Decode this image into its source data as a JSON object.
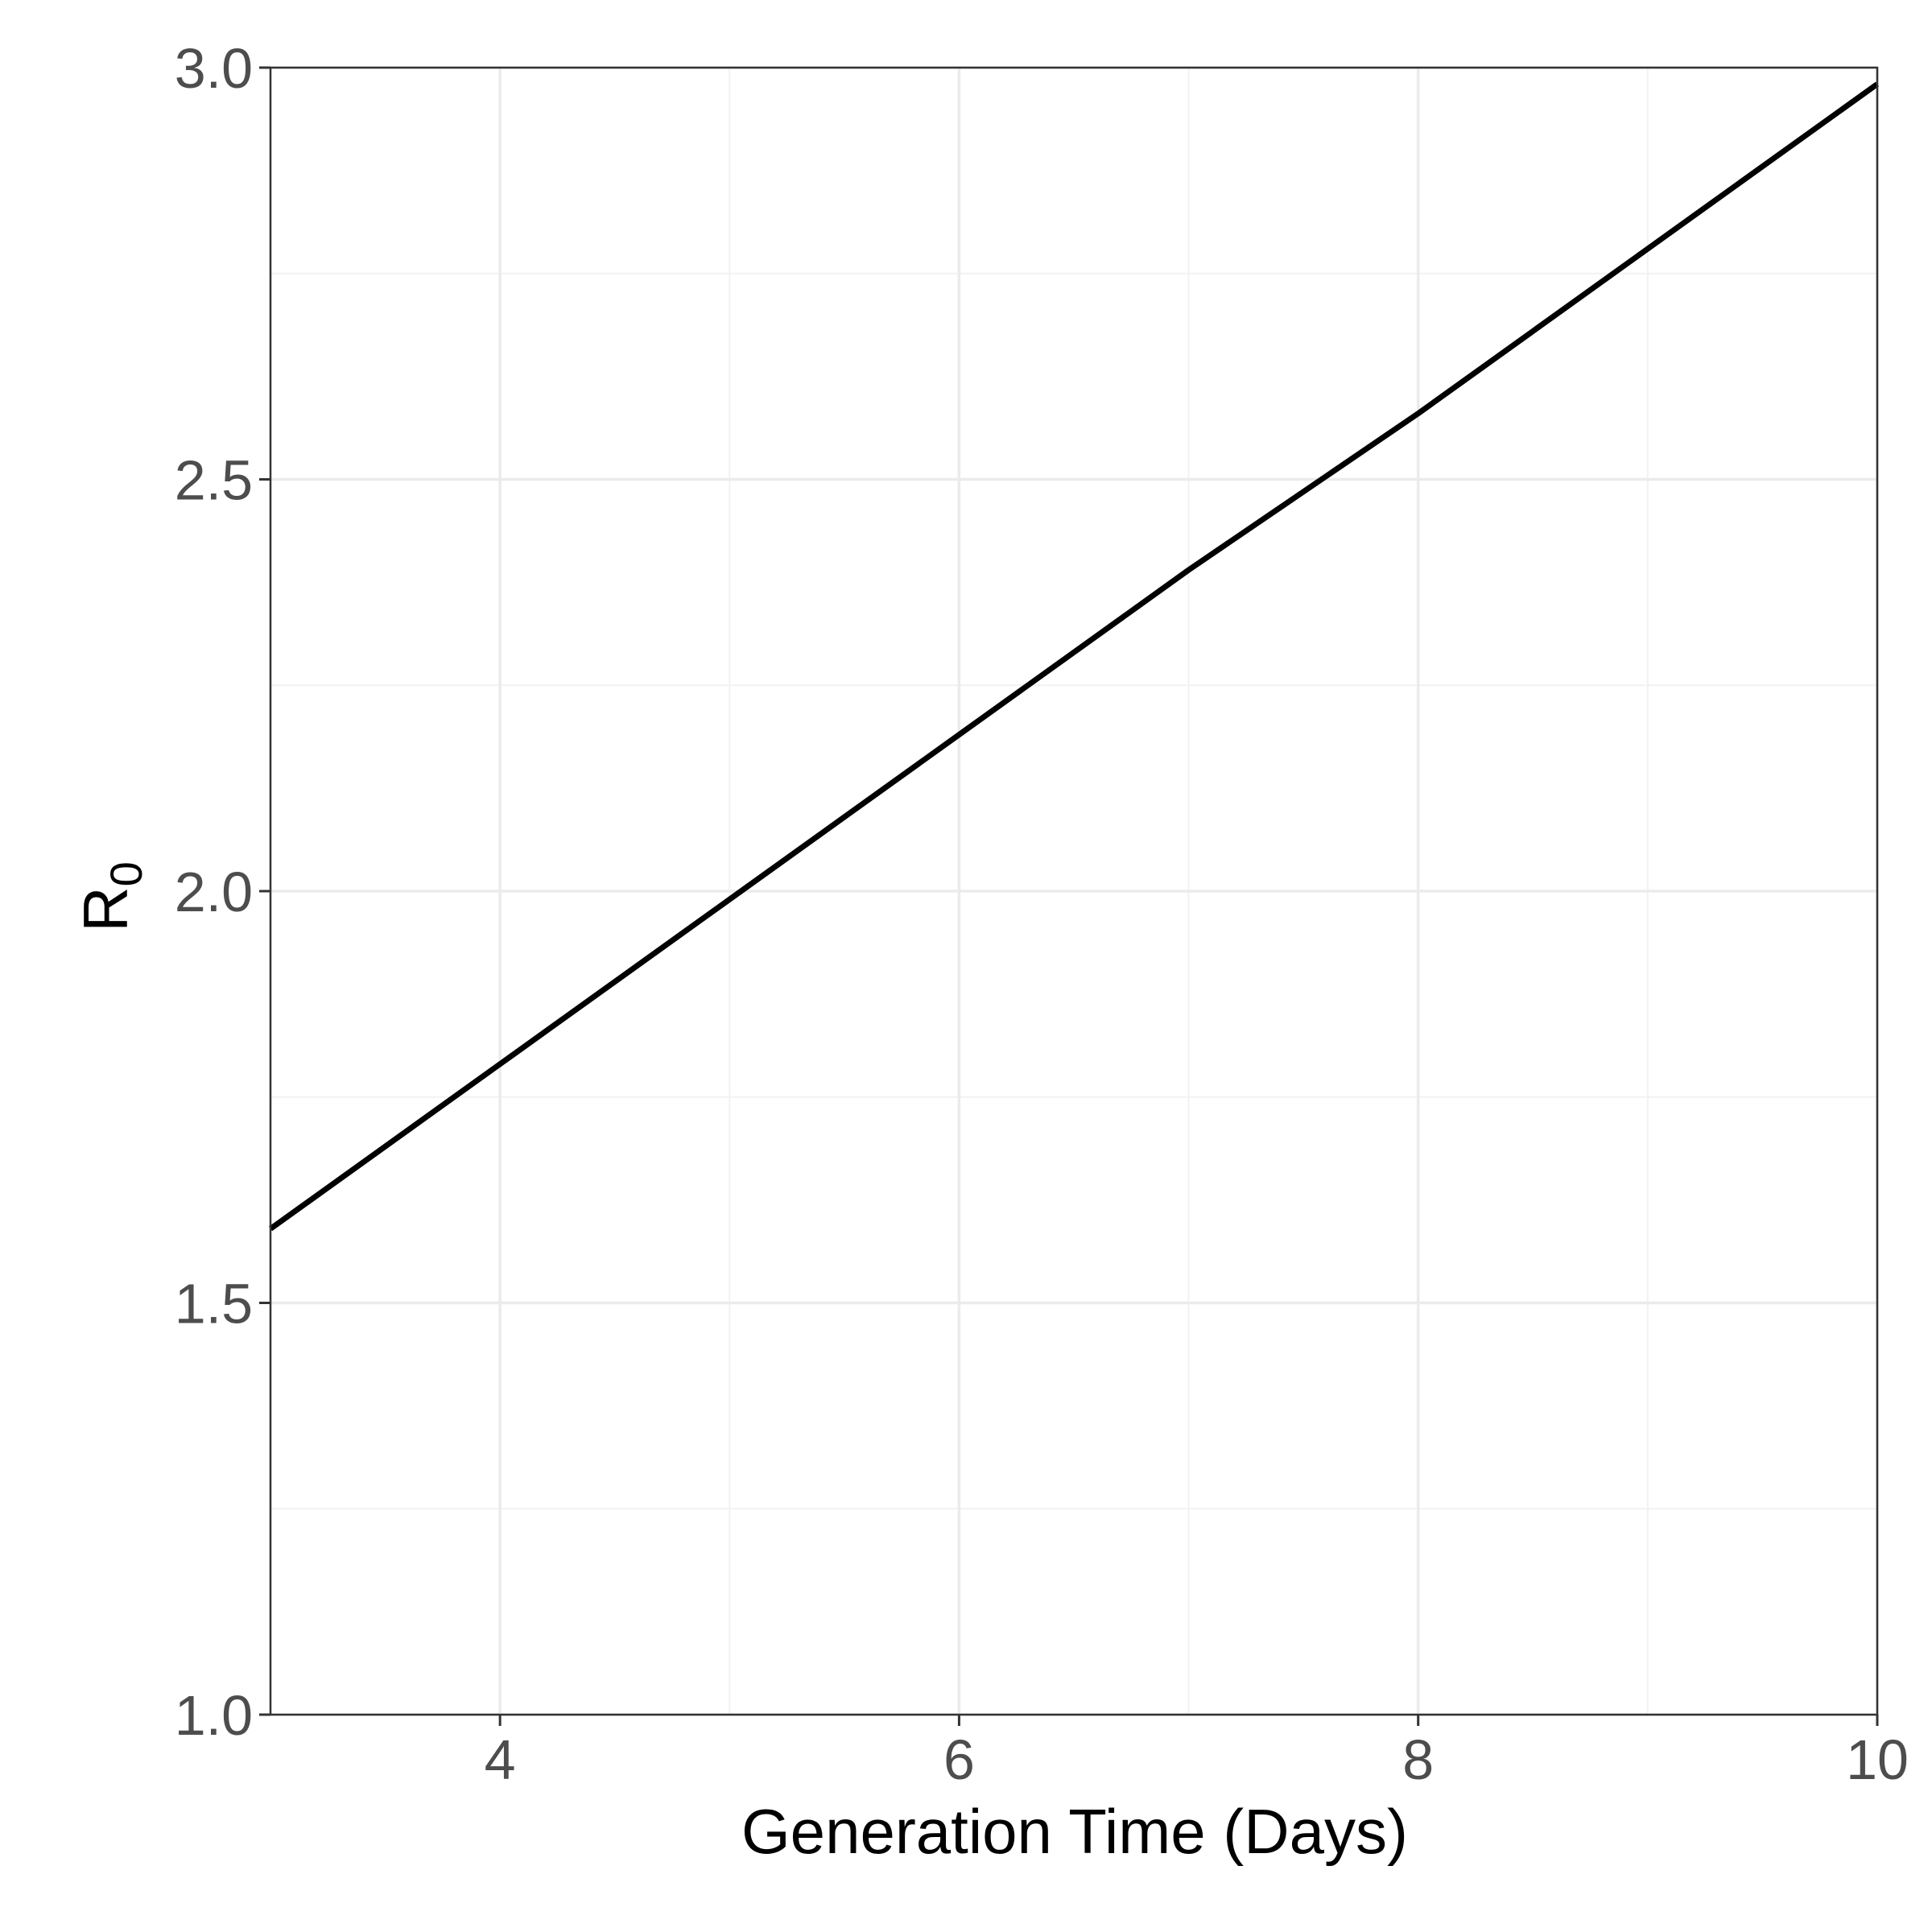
{
  "chart_data": {
    "type": "line",
    "xlabel": "Generation Time (Days)",
    "ylabel": {
      "base": "R",
      "subscript": "0"
    },
    "xlim": [
      3,
      10
    ],
    "ylim": [
      1.0,
      3.0
    ],
    "x_ticks": [
      4,
      6,
      8,
      10
    ],
    "x_tick_labels": [
      "4",
      "6",
      "8",
      "10"
    ],
    "x_minor_gridlines": [
      5,
      7,
      9
    ],
    "y_ticks": [
      1.0,
      1.5,
      2.0,
      2.5,
      3.0
    ],
    "y_tick_labels": [
      "1.0",
      "1.5",
      "2.0",
      "2.5",
      "3.0"
    ],
    "y_minor_gridlines": [
      1.25,
      1.75,
      2.25,
      2.75
    ],
    "grid": true,
    "series": [
      {
        "x": [
          3,
          4,
          5,
          6,
          7,
          8,
          9,
          10
        ],
        "y": [
          1.59,
          1.79,
          1.99,
          2.19,
          2.39,
          2.58,
          2.78,
          2.98
        ],
        "color": "#000000"
      }
    ],
    "colors": {
      "grid_major": "#ebebeb",
      "grid_minor": "#f2f2f2",
      "panel_border": "#333333",
      "tick_text": "#4d4d4d"
    }
  }
}
